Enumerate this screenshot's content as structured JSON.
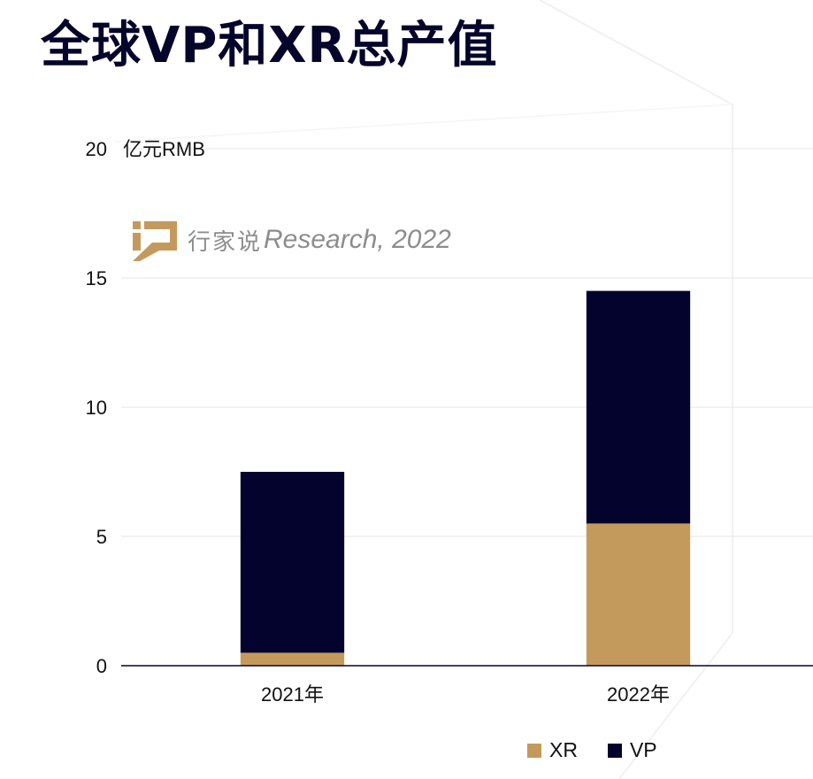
{
  "title": "全球VP和XR总产值",
  "watermark": {
    "cn": "行家说",
    "en": "Research, 2022"
  },
  "colors": {
    "XR": "#c49a5c",
    "VP": "#03032e",
    "axis": "#03032e",
    "grid": "#e6e6e6"
  },
  "chart_data": {
    "type": "bar",
    "stacked": true,
    "categories": [
      "2021年",
      "2022年"
    ],
    "series": [
      {
        "name": "XR",
        "values": [
          0.5,
          5.5
        ]
      },
      {
        "name": "VP",
        "values": [
          7.0,
          9.0
        ]
      }
    ],
    "ylabel": "亿元RMB",
    "ylim": [
      0,
      20
    ],
    "yticks": [
      "0",
      "5",
      "10",
      "15",
      "20"
    ],
    "grid": true,
    "legend_position": "bottom-right"
  }
}
